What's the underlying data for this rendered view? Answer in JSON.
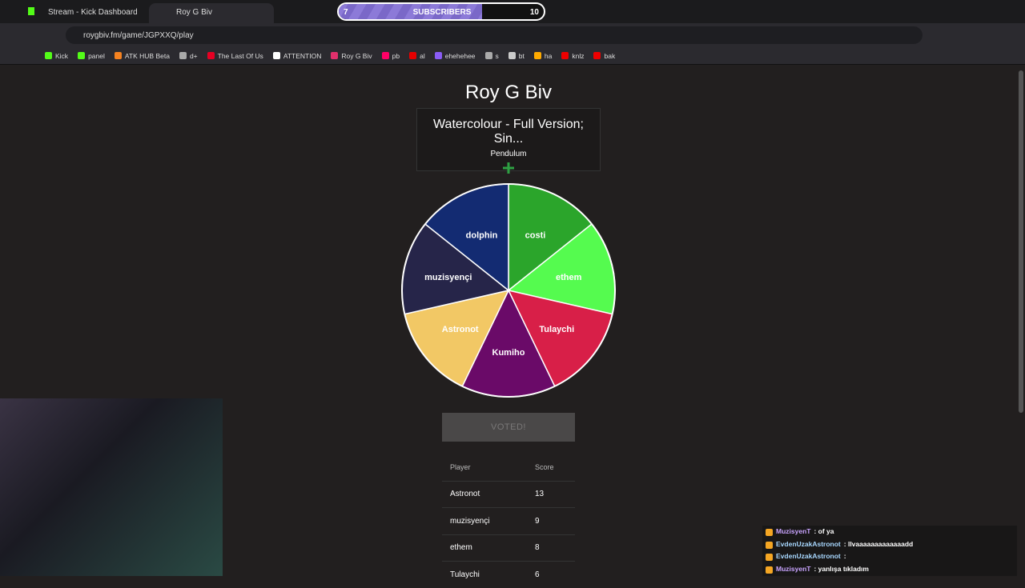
{
  "browser": {
    "tabs": [
      {
        "title": "Stream - Kick Dashboard"
      },
      {
        "title": "Roy G Biv"
      }
    ],
    "url": "roygbiv.fm/game/JGPXXQ/play",
    "bookmarks": [
      "Kick",
      "panel",
      "ATK HUB Beta",
      "d+",
      "The Last Of Us",
      "ATTENTION",
      "Roy G Biv",
      "pb",
      "al",
      "ehehehee",
      "s",
      "bt",
      "ha",
      "knlz",
      "bak"
    ]
  },
  "overlay": {
    "subscribers": {
      "current": 7,
      "label": "SUBSCRIBERS",
      "goal": 10
    },
    "chat": [
      {
        "user": "MuzisyenT",
        "text": ": of ya",
        "color": "#c9a4ff"
      },
      {
        "user": "EvdenUzakAstronot",
        "text": ": llvaaaaaaaaaaaaadd",
        "color": "#a8d8ff"
      },
      {
        "user": "EvdenUzakAstronot",
        "text": ":",
        "color": "#a8d8ff"
      },
      {
        "user": "MuzisyenT",
        "text": ": yanlışa tıkladım",
        "color": "#c9a4ff"
      }
    ]
  },
  "game": {
    "title": "Roy G Biv",
    "song": "Watercolour - Full Version; Sin...",
    "artist": "Pendulum",
    "wheel": [
      {
        "label": "costi",
        "color": "#2ba52b"
      },
      {
        "label": "ethem",
        "color": "#55fb4f"
      },
      {
        "label": "Tulaychi",
        "color": "#d81f48"
      },
      {
        "label": "Kumiho",
        "color": "#6a0a68"
      },
      {
        "label": "Astronot",
        "color": "#f2c865"
      },
      {
        "label": "muzisyençi",
        "color": "#262549"
      },
      {
        "label": "dolphin",
        "color": "#132b72"
      }
    ],
    "button": "VOTED!",
    "table": {
      "header": [
        "Player",
        "Score"
      ],
      "rows": [
        [
          "Astronot",
          "13"
        ],
        [
          "muzisyençi",
          "9"
        ],
        [
          "ethem",
          "8"
        ],
        [
          "Tulaychi",
          "6"
        ]
      ]
    }
  }
}
